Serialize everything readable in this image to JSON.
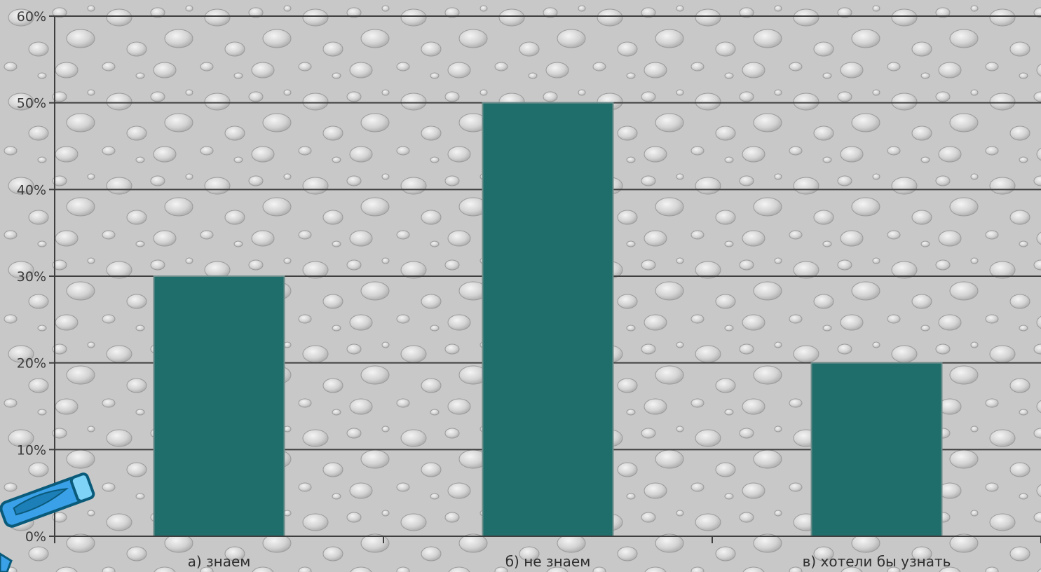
{
  "chart_data": {
    "type": "bar",
    "categories": [
      "а)  знаем",
      "б) не знаем",
      "в) хотели бы узнать"
    ],
    "values": [
      30,
      50,
      20
    ],
    "value_unit": "%",
    "ylim": [
      0,
      60
    ],
    "yticks": [
      0,
      10,
      20,
      30,
      40,
      50,
      60
    ],
    "ytick_labels": [
      "0%",
      "10%",
      "20%",
      "30%",
      "40%",
      "50%",
      "60%"
    ],
    "title": "",
    "xlabel": "",
    "ylabel": "",
    "grid": true,
    "legend": "none"
  },
  "colors": {
    "bar": "#1f6e6b",
    "bar_edge": "#6a8c8a",
    "grid": "#3f3f3f",
    "background": "#c9c9c9"
  },
  "decorations": {
    "corner_icon": "pen-icon"
  }
}
